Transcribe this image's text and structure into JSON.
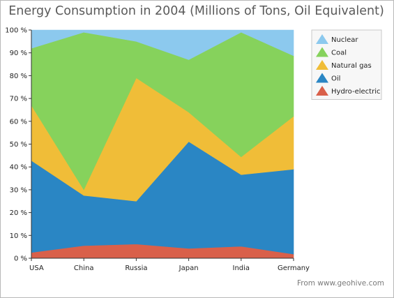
{
  "chart_data": {
    "type": "area",
    "stacking": "percent",
    "title": "Energy Consumption in 2004 (Millions of Tons, Oil Equivalent)",
    "categories": [
      "USA",
      "China",
      "Russia",
      "Japan",
      "India",
      "Germany"
    ],
    "y_ticks": [
      "0 %",
      "10 %",
      "20 %",
      "30 %",
      "40 %",
      "50 %",
      "60 %",
      "70 %",
      "80 %",
      "90 %",
      "100 %"
    ],
    "ylim": [
      0,
      100
    ],
    "legend_position": "top-right",
    "series": [
      {
        "name": "Hydro-electric",
        "color": "#d9604a",
        "values": [
          2.5,
          5.5,
          6.2,
          4.3,
          5.2,
          1.8
        ]
      },
      {
        "name": "Oil",
        "color": "#2a86c4",
        "values": [
          40.3,
          22.0,
          18.8,
          46.8,
          31.4,
          37.2
        ]
      },
      {
        "name": "Natural gas",
        "color": "#f0bd38",
        "values": [
          24.2,
          2.5,
          54.0,
          12.9,
          7.8,
          23.2
        ]
      },
      {
        "name": "Coal",
        "color": "#86d25c",
        "values": [
          25.0,
          69.0,
          16.0,
          23.0,
          54.6,
          26.5
        ]
      },
      {
        "name": "Nuclear",
        "color": "#8cc9ee",
        "values": [
          8.0,
          1.0,
          5.0,
          13.0,
          1.0,
          11.3
        ]
      }
    ]
  },
  "credit": "From www.geohive.com"
}
